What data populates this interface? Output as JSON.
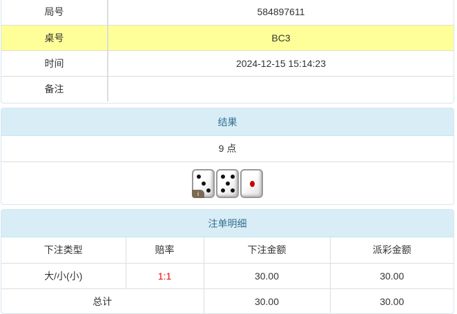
{
  "info": [
    {
      "label": "局号",
      "value": "584897611"
    },
    {
      "label": "桌号",
      "value": "BC3"
    },
    {
      "label": "时间",
      "value": "2024-12-15 15:14:23"
    },
    {
      "label": "备注",
      "value": ""
    }
  ],
  "result": {
    "title": "结果",
    "points": "9 点",
    "dice": [
      3,
      5,
      1
    ],
    "info_badge": "i"
  },
  "bets": {
    "title": "注单明细",
    "headers": [
      "下注类型",
      "赔率",
      "下注金额",
      "派彩金额"
    ],
    "rows": [
      [
        "大/小(小)",
        "1:1",
        "30.00",
        "30.00"
      ]
    ],
    "total": {
      "label": "总计",
      "bet": "30.00",
      "payout": "30.00"
    }
  },
  "colors": {
    "highlight_row": "#ffff99",
    "panel_header": "#d9edf7",
    "odds": "#ee0000"
  }
}
